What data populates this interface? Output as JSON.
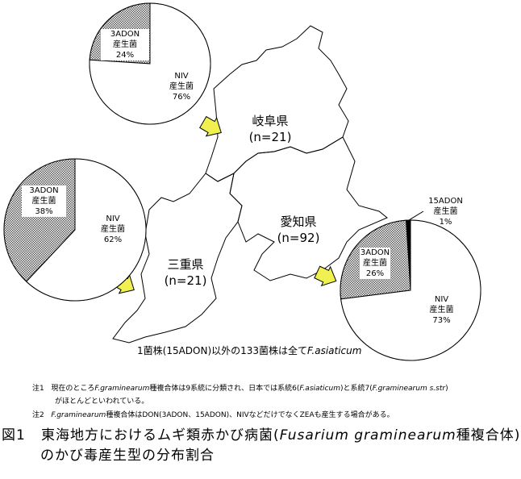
{
  "chart_data": [
    {
      "type": "pie",
      "region": "岐阜県",
      "n": "(n=21)",
      "slices": [
        {
          "label": "3ADON\n産生菌",
          "value": 24,
          "text": "24%",
          "pattern": "hatched"
        },
        {
          "label": "NIV\n産生菌",
          "value": 76,
          "text": "76%",
          "pattern": "white"
        }
      ]
    },
    {
      "type": "pie",
      "region": "三重県",
      "n": "(n=21)",
      "slices": [
        {
          "label": "3ADON\n産生菌",
          "value": 38,
          "text": "38%",
          "pattern": "hatched"
        },
        {
          "label": "NIV\n産生菌",
          "value": 62,
          "text": "62%",
          "pattern": "white"
        }
      ]
    },
    {
      "type": "pie",
      "region": "愛知県",
      "n": "(n=92)",
      "slices": [
        {
          "label": "15ADON\n産生菌",
          "value": 1,
          "text": "1%",
          "pattern": "black"
        },
        {
          "label": "3ADON\n産生菌",
          "value": 26,
          "text": "26%",
          "pattern": "hatched"
        },
        {
          "label": "NIV\n産生菌",
          "value": 73,
          "text": "73%",
          "pattern": "white"
        }
      ]
    }
  ],
  "map": {
    "gifu": "岐阜県",
    "gifu_n": "(n=21)",
    "aichi": "愛知県",
    "aichi_n": "(n=92)",
    "mie": "三重県",
    "mie_n": "(n=21)",
    "arrow_color": "#f0f050"
  },
  "caption_in_map": {
    "text": "1菌株(15ADON)以外の133菌株は全て",
    "italic": "F.asiaticum"
  },
  "notes": {
    "n1_label": "注1",
    "n1_a": "現在のところ",
    "n1_b": "F.graminearum",
    "n1_c": "種複合体は9系統に分類され、日本では系統6(",
    "n1_d": "F.asiaticum",
    "n1_e": ")と系統7(",
    "n1_f": "F.graminearum  s.str",
    "n1_g": ")",
    "n1_line2": "がほとんどといわれている。",
    "n2_label": "注2",
    "n2_a": "F.graminearum",
    "n2_b": "種複合体はDON(3ADON、15ADON)、NIVなどだけでなくZEAも産生する場合がある。"
  },
  "title": {
    "prefix": "図1",
    "a": "東海地方におけるムギ類赤かび病菌(",
    "b": "Fusarium  graminearum",
    "c": "種複合体)",
    "line2": "のかび毒産生型の分布割合"
  }
}
